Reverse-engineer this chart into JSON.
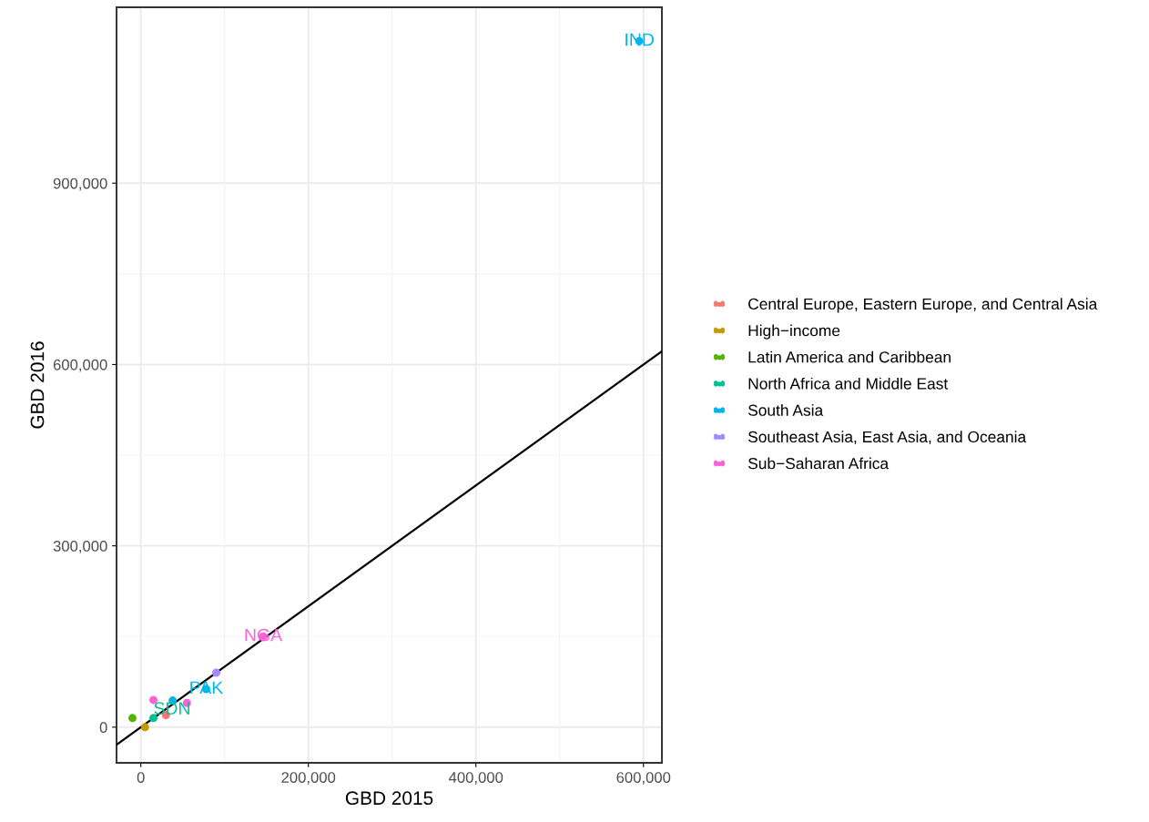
{
  "chart_data": {
    "type": "scatter",
    "xlabel": "GBD 2015",
    "ylabel": "GBD 2016",
    "xlim": [
      -29000,
      622000
    ],
    "ylim": [
      -59000,
      1191000
    ],
    "xticks": [
      {
        "value": 0,
        "label": "0"
      },
      {
        "value": 200000,
        "label": "200,000"
      },
      {
        "value": 400000,
        "label": "400,000"
      },
      {
        "value": 600000,
        "label": "600,000"
      }
    ],
    "yticks": [
      {
        "value": 0,
        "label": "0"
      },
      {
        "value": 300000,
        "label": "300,000"
      },
      {
        "value": 600000,
        "label": "600,000"
      },
      {
        "value": 900000,
        "label": "900,000"
      }
    ],
    "grid": true,
    "legend": "right",
    "marker": "circle",
    "series": [
      {
        "name": "Central Europe, Eastern Europe, and Central Asia",
        "color": "#f8766d",
        "x": [
          30000
        ],
        "values": [
          20000
        ],
        "value_labels": [
          null
        ]
      },
      {
        "name": "High−income",
        "color": "#c49a00",
        "x": [
          5000
        ],
        "values": [
          0
        ],
        "value_labels": [
          null
        ]
      },
      {
        "name": "Latin America and Caribbean",
        "color": "#53b400",
        "x": [
          -10000
        ],
        "values": [
          15000
        ],
        "value_labels": [
          null
        ]
      },
      {
        "name": "North Africa and Middle East",
        "color": "#00c094",
        "x": [
          15000
        ],
        "values": [
          15000
        ],
        "value_labels": [
          "SDN"
        ]
      },
      {
        "name": "South Asia",
        "color": "#00b6eb",
        "x": [
          595000,
          78000,
          38000
        ],
        "values": [
          1135000,
          63000,
          44000
        ],
        "value_labels": [
          "IND",
          "PAK",
          null
        ]
      },
      {
        "name": "Southeast Asia, East Asia, and Oceania",
        "color": "#a58aff",
        "x": [
          90000
        ],
        "values": [
          90000
        ],
        "value_labels": [
          null
        ]
      },
      {
        "name": "Sub−Saharan Africa",
        "color": "#fb61d7",
        "x": [
          146000,
          55000,
          15000
        ],
        "values": [
          150000,
          40000,
          45000
        ],
        "value_labels": [
          "NGA",
          null,
          null
        ]
      },
      {
        "type": "line",
        "marker": "none",
        "color": "#000000",
        "x": [
          -29000,
          622000
        ],
        "values": [
          -29000,
          622000
        ]
      }
    ]
  }
}
